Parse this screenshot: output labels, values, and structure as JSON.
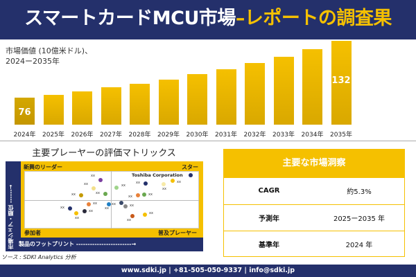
{
  "header": {
    "title_main": "スマートカードMCU市場",
    "title_sep": "–",
    "title_accent": "レポートの調査果"
  },
  "chart_data": {
    "type": "bar",
    "title": "市場価値 (10億米ドル)、",
    "subtitle": "2024ー2035年",
    "categories": [
      "2024年",
      "2025年",
      "2026年",
      "2027年",
      "2028年",
      "2029年",
      "2030年",
      "2031年",
      "2032年",
      "2033年",
      "2034年",
      "2035年"
    ],
    "values": [
      76,
      79,
      82,
      86,
      90,
      94,
      99,
      104,
      110,
      116,
      124,
      132
    ],
    "data_labels": {
      "0": "76",
      "11": "132"
    },
    "colors": {
      "bar": "#f5c000",
      "first_bar": "#c9a000"
    }
  },
  "matrix": {
    "title": "主要プレーヤーの評価マトリックス",
    "quadrants": {
      "top_left": "新興のリーダー",
      "top_right": "スター",
      "bottom_left": "参加者",
      "bottom_right": "普及プレーヤー"
    },
    "y_axis": "市場シェア・順位 ------→",
    "x_axis": "製品のフットプリント ------------------------→",
    "highlight": "Toshiba Corporation",
    "point_label": "xx",
    "points": [
      {
        "color": "#7b3fa0"
      },
      {
        "color": "#f2e08a"
      },
      {
        "color": "#6aa84f"
      },
      {
        "color": "#c49a00"
      },
      {
        "color": "#e8813a"
      },
      {
        "color": "#1f7fc4"
      },
      {
        "color": "#24306b"
      },
      {
        "color": "#2a2a3a"
      },
      {
        "color": "#f5c000"
      },
      {
        "color": "#9fd48a"
      },
      {
        "color": "#24306b"
      },
      {
        "color": "#f7eaa8"
      },
      {
        "color": "#f5c000"
      },
      {
        "color": "#24306b"
      },
      {
        "color": "#e8813a"
      },
      {
        "color": "#6aa84f"
      },
      {
        "color": "#3a4a6a"
      },
      {
        "color": "#888888"
      },
      {
        "color": "#c85a1a"
      },
      {
        "color": "#f5c000"
      }
    ]
  },
  "source": "ソース : SDKI Analytics 分析",
  "insights": {
    "title": "主要な市場洞察",
    "rows": [
      {
        "key": "CAGR",
        "value": "約5.3%"
      },
      {
        "key": "予測年",
        "value": "2025ー2035 年"
      },
      {
        "key": "基準年",
        "value": "2024 年"
      }
    ]
  },
  "footer": "www.sdki.jp | +81-505-050-9337 | info@sdki.jp"
}
